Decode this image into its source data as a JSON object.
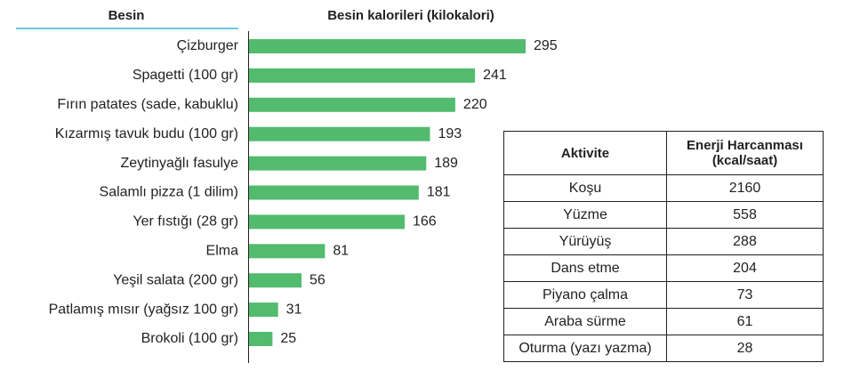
{
  "chart_data": {
    "type": "bar",
    "orientation": "horizontal",
    "category_header": "Besin",
    "title": "Besin kalorileri (kilokalori)",
    "categories": [
      "Çizburger",
      "Spagetti (100 gr)",
      "Fırın patates (sade, kabuklu)",
      "Kızarmış tavuk budu (100 gr)",
      "Zeytinyağlı fasulye",
      "Salamlı pizza (1 dilim)",
      "Yer fıstığı (28 gr)",
      "Elma",
      "Yeşil salata (200 gr)",
      "Patlamış mısır (yağsız 100 gr)",
      "Brokoli (100 gr)"
    ],
    "values": [
      295,
      241,
      220,
      193,
      189,
      181,
      166,
      81,
      56,
      31,
      25
    ],
    "color": "#52bb6e"
  },
  "table": {
    "header": [
      "Aktivite",
      "Enerji Harcanması (kcal/saat)"
    ],
    "rows": [
      [
        "Koşu",
        "2160"
      ],
      [
        "Yüzme",
        "558"
      ],
      [
        "Yürüyüş",
        "288"
      ],
      [
        "Dans etme",
        "204"
      ],
      [
        "Piyano çalma",
        "73"
      ],
      [
        "Araba sürme",
        "61"
      ],
      [
        "Oturma (yazı yazma)",
        "28"
      ]
    ]
  }
}
